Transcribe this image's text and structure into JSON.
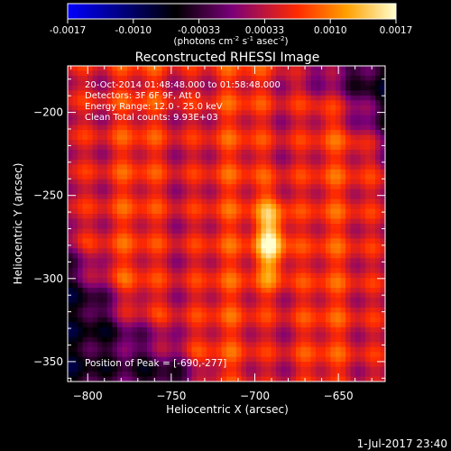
{
  "colorbar": {
    "ticks": [
      "-0.0017",
      "-0.0010",
      "-0.00033",
      "0.00033",
      "0.0010",
      "0.0017"
    ],
    "unit_label": "(photons cm",
    "unit_exp1": "-2",
    "unit_mid": " s",
    "unit_exp2": "-1",
    "unit_mid2": " asec",
    "unit_exp3": "-2",
    "unit_end": ")",
    "colors": [
      "#0000ff",
      "#000000",
      "#7a0078",
      "#ff2a00",
      "#ffa000",
      "#ffffd0"
    ]
  },
  "chart_data": {
    "type": "heatmap",
    "title": "Reconstructed RHESSI Image",
    "xlabel": "Heliocentric X (arcsec)",
    "ylabel": "Heliocentric Y (arcsec)",
    "xlim": [
      -812,
      -622
    ],
    "ylim": [
      -362,
      -172
    ],
    "x_ticks": [
      -800,
      -750,
      -700,
      -650
    ],
    "y_ticks": [
      -200,
      -250,
      -300,
      -350
    ],
    "x_tick_labels": [
      "−800",
      "−750",
      "−700",
      "−650"
    ],
    "y_tick_labels": [
      "−200",
      "−250",
      "−300",
      "−350"
    ],
    "peak": [
      -690,
      -277
    ],
    "annotations": [
      "20-Oct-2014 01:48:48.000 to 01:58:48.000",
      "Detectors: 3F 6F 9F, Att 0",
      "Energy Range: 12.0 - 25.0 keV",
      "Clean     Total counts: 9.93E+03"
    ],
    "peak_label": "Position of Peak = [-690,-277]"
  },
  "footer": {
    "timestamp": "1-Jul-2017 23:40"
  }
}
